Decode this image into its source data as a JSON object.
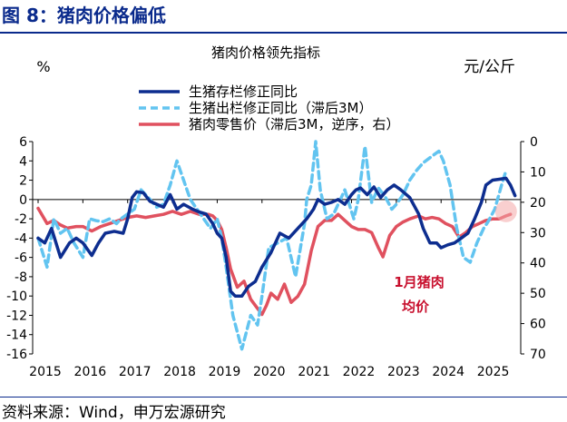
{
  "figure_title": "图 8：猪肉价格偏低",
  "source": "资料来源：Wind，申万宏源研究",
  "chart_data": {
    "type": "line",
    "title": "猪肉价格领先指标",
    "left_axis_label": "%",
    "right_axis_label": "元/公斤",
    "left_ylim": [
      -16,
      6
    ],
    "left_ticks": [
      6,
      4,
      2,
      0,
      -2,
      -4,
      -6,
      -8,
      -10,
      -12,
      -14,
      -16
    ],
    "right_ylim": [
      0,
      70
    ],
    "right_inverted": true,
    "right_ticks": [
      0,
      10,
      20,
      30,
      40,
      50,
      60,
      70
    ],
    "x_range": [
      2015,
      2025.9
    ],
    "x_ticks": [
      "2015",
      "2016",
      "2017",
      "2018",
      "2019",
      "2020",
      "2021",
      "2022",
      "2023",
      "2024",
      "2025"
    ],
    "annotation": {
      "line1": "1月猪肉",
      "line2": "均价",
      "at": [
        2025.45,
        23
      ]
    },
    "series": [
      {
        "name": "生猪存栏修正同比",
        "axis": "left",
        "color": "#0d2d8f",
        "style": "solid",
        "x": [
          2015.0,
          2015.15,
          2015.3,
          2015.5,
          2015.7,
          2015.85,
          2016.0,
          2016.2,
          2016.35,
          2016.5,
          2016.7,
          2016.9,
          2017.0,
          2017.1,
          2017.2,
          2017.35,
          2017.5,
          2017.65,
          2017.8,
          2017.95,
          2018.1,
          2018.25,
          2018.45,
          2018.6,
          2018.75,
          2018.9,
          2019.0,
          2019.1,
          2019.2,
          2019.3,
          2019.4,
          2019.55,
          2019.7,
          2019.85,
          2020.0,
          2020.2,
          2020.4,
          2020.6,
          2020.8,
          2021.0,
          2021.15,
          2021.25,
          2021.4,
          2021.55,
          2021.7,
          2021.85,
          2022.0,
          2022.1,
          2022.2,
          2022.35,
          2022.5,
          2022.65,
          2022.8,
          2022.95,
          2023.1,
          2023.3,
          2023.5,
          2023.6,
          2023.75,
          2023.9,
          2024.0,
          2024.15,
          2024.3,
          2024.45,
          2024.6,
          2024.75,
          2024.9,
          2025.0,
          2025.15,
          2025.3,
          2025.45,
          2025.55,
          2025.65
        ],
        "y": [
          -4,
          -4.5,
          -3,
          -6,
          -4.5,
          -4,
          -4.5,
          -5.8,
          -4.5,
          -3.5,
          -3.3,
          -3.5,
          -2,
          0.2,
          0.8,
          0.7,
          -0.2,
          -0.5,
          -0.8,
          0.5,
          -1,
          -0.5,
          -1,
          -1.3,
          -1.5,
          -2.5,
          -3.5,
          -4,
          -6,
          -9.5,
          -10,
          -10,
          -9,
          -8.5,
          -7,
          -5.5,
          -3.5,
          -4,
          -3,
          -2,
          -1,
          0,
          -0.5,
          -0.3,
          0,
          -0.5,
          0.5,
          1,
          1.2,
          0.5,
          1.3,
          0.2,
          1,
          1.5,
          1,
          0.2,
          -1.5,
          -3,
          -4.5,
          -4.5,
          -5,
          -4.7,
          -4.5,
          -4,
          -3.5,
          -2,
          -0.3,
          1.5,
          2,
          2.1,
          2.2,
          1.5,
          0.4
        ]
      },
      {
        "name": "生猪出栏修正同比（滞后3M）",
        "axis": "left",
        "color": "#62c4f0",
        "style": "dashed",
        "x": [
          2015.0,
          2015.2,
          2015.35,
          2015.5,
          2015.65,
          2015.8,
          2016.0,
          2016.15,
          2016.3,
          2016.45,
          2016.6,
          2016.75,
          2016.85,
          2017.0,
          2017.15,
          2017.3,
          2017.5,
          2017.65,
          2017.8,
          2017.95,
          2018.1,
          2018.25,
          2018.4,
          2018.55,
          2018.7,
          2018.85,
          2019.0,
          2019.1,
          2019.2,
          2019.35,
          2019.55,
          2019.75,
          2019.9,
          2020.0,
          2020.15,
          2020.35,
          2020.55,
          2020.75,
          2020.95,
          2021.0,
          2021.1,
          2021.2,
          2021.3,
          2021.45,
          2021.6,
          2021.75,
          2021.85,
          2021.95,
          2022.05,
          2022.15,
          2022.3,
          2022.45,
          2022.6,
          2022.75,
          2022.9,
          2023.0,
          2023.15,
          2023.3,
          2023.45,
          2023.6,
          2023.8,
          2023.95,
          2024.05,
          2024.2,
          2024.35,
          2024.5,
          2024.65,
          2024.8,
          2024.95,
          2025.05,
          2025.2,
          2025.35,
          2025.45
        ],
        "y": [
          -4,
          -7,
          -2,
          -3.5,
          -3,
          -4.5,
          -6,
          -2,
          -2.2,
          -2.3,
          -2,
          -2.5,
          -2,
          -1.5,
          -1,
          1,
          0,
          -0.8,
          -0.5,
          1.5,
          4,
          2,
          0,
          -1,
          -2,
          -3,
          -2,
          -4,
          -7,
          -12,
          -15.5,
          -12,
          -13,
          -10,
          -5,
          -4.5,
          -4,
          -8,
          -2.5,
          0,
          1.5,
          6,
          1,
          -2,
          -1.5,
          0,
          1,
          -0.5,
          -2,
          0,
          5.5,
          -0.3,
          1.2,
          0.3,
          -1,
          -0.5,
          0.5,
          2,
          3,
          3.8,
          4.5,
          5,
          4,
          1.5,
          -3,
          -6,
          -6.5,
          -4.5,
          -3,
          -2.3,
          -1,
          1.5,
          3
        ]
      },
      {
        "name": "猪肉零售价（滞后3M，逆序，右）",
        "axis": "right",
        "color": "#e0515f",
        "style": "solid",
        "x": [
          2015.0,
          2015.2,
          2015.35,
          2015.5,
          2015.65,
          2015.85,
          2016.0,
          2016.2,
          2016.4,
          2016.6,
          2016.8,
          2017.0,
          2017.2,
          2017.4,
          2017.6,
          2017.8,
          2018.0,
          2018.2,
          2018.4,
          2018.6,
          2018.8,
          2018.9,
          2019.0,
          2019.1,
          2019.2,
          2019.3,
          2019.45,
          2019.6,
          2019.75,
          2019.9,
          2020.0,
          2020.1,
          2020.2,
          2020.35,
          2020.5,
          2020.65,
          2020.8,
          2020.95,
          2021.1,
          2021.25,
          2021.4,
          2021.55,
          2021.7,
          2021.85,
          2022.0,
          2022.15,
          2022.3,
          2022.45,
          2022.6,
          2022.7,
          2022.85,
          2023.0,
          2023.15,
          2023.3,
          2023.5,
          2023.65,
          2023.8,
          2023.95,
          2024.1,
          2024.25,
          2024.4,
          2024.55,
          2024.7,
          2024.85,
          2025.0,
          2025.15,
          2025.3,
          2025.45,
          2025.55
        ],
        "y": [
          22,
          27,
          26,
          27.5,
          28.5,
          28,
          28,
          29.5,
          28,
          27,
          26,
          25,
          24.5,
          25,
          24.5,
          24,
          23,
          24,
          23,
          24,
          24,
          24.5,
          26,
          29,
          35,
          42,
          48,
          46,
          52,
          55,
          57,
          54,
          50,
          52,
          47,
          53,
          51,
          47,
          36,
          28,
          26,
          26,
          24,
          26,
          28,
          29,
          29,
          30,
          35,
          38,
          31,
          28,
          26.5,
          25.5,
          24.5,
          25.5,
          25,
          25.5,
          27,
          28,
          31.5,
          30,
          28,
          27,
          26,
          25.5,
          25.5,
          24.5,
          24
        ]
      }
    ]
  }
}
